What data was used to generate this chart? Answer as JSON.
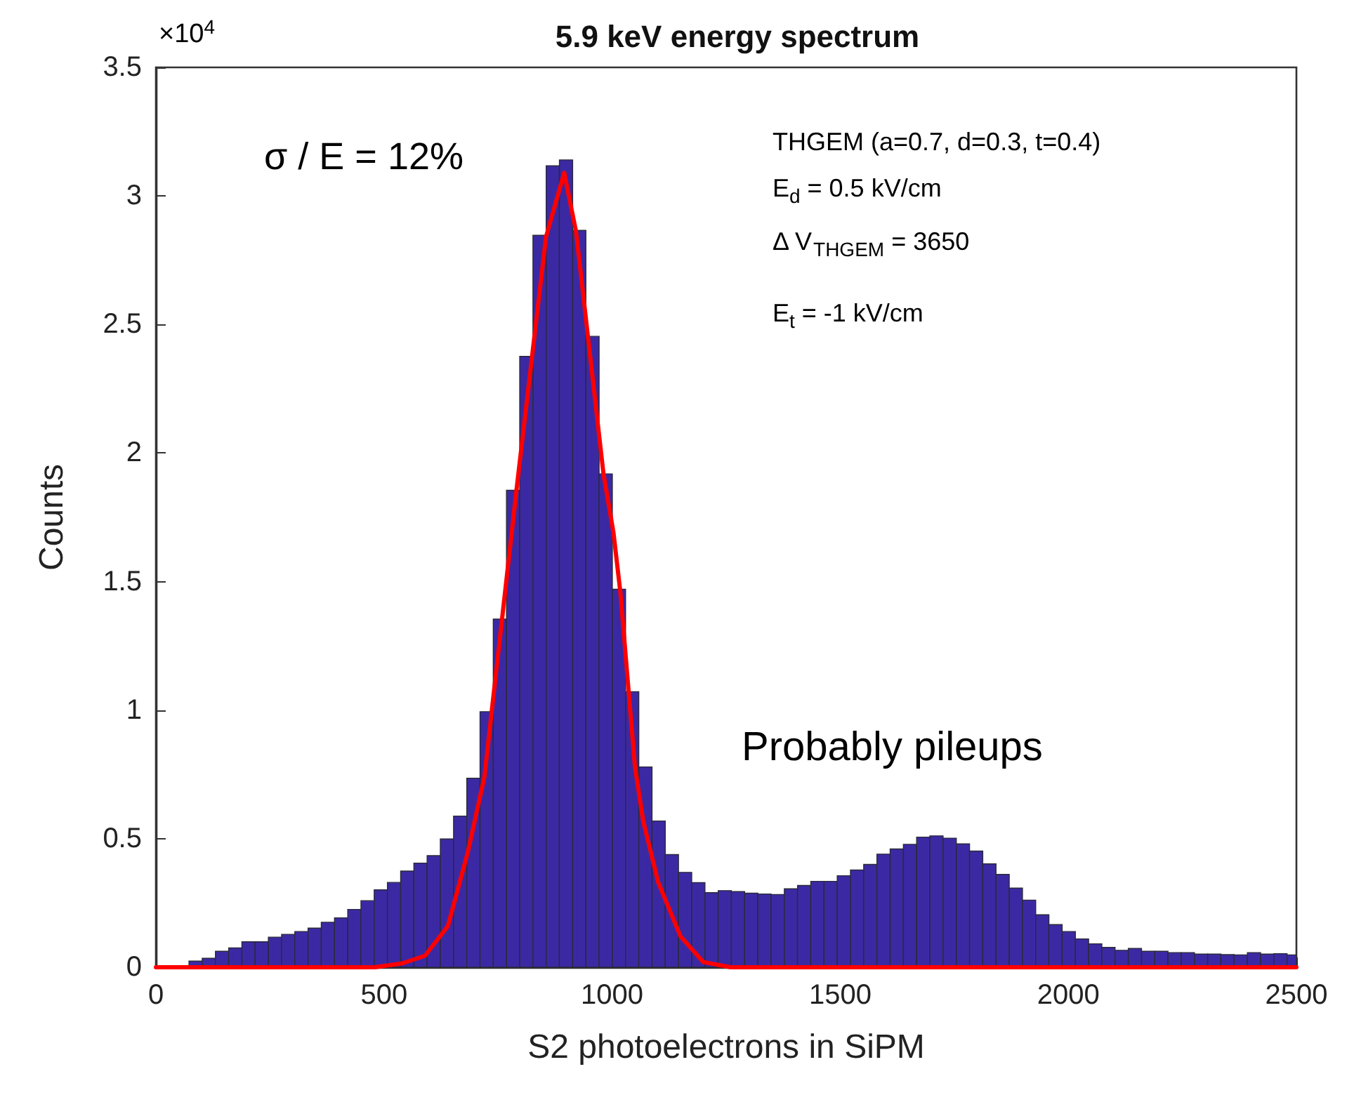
{
  "chart_data": {
    "type": "histogram",
    "title": "5.9 keV energy spectrum",
    "xlabel": "S2 photoelectrons in SiPM",
    "ylabel": "Counts",
    "bins": [
      72.5,
      101.5,
      130.5,
      159.5,
      188.5,
      217.5,
      246.5,
      275.5,
      304.5,
      333.5,
      362.5,
      391.5,
      420.5,
      449.5,
      478.5,
      507.5,
      536.5,
      565.5,
      594.5,
      623.5,
      652.5,
      681.5,
      710.5,
      739.5,
      768.5,
      797.5,
      826.5,
      855.5,
      884.5,
      913.5,
      942.5,
      971.5,
      1000.5,
      1029.5,
      1058.5,
      1087.5,
      1116.5,
      1145.5,
      1174.5,
      1203.5,
      1232.5,
      1261.5,
      1290.5,
      1319.5,
      1348.5,
      1377.5,
      1406.5,
      1435.5,
      1464.5,
      1493.5,
      1522.5,
      1551.5,
      1580.5,
      1609.5,
      1638.5,
      1667.5,
      1696.5,
      1725.5,
      1754.5,
      1783.5,
      1812.5,
      1841.5,
      1870.5,
      1899.5,
      1928.5,
      1957.5,
      1986.5,
      2015.5,
      2044.5,
      2073.5,
      2102.5,
      2131.5,
      2160.5,
      2189.5,
      2218.5,
      2247.5,
      2276.5,
      2305.5,
      2334.5,
      2363.5,
      2392.5,
      2421.5,
      2450.5,
      2479.5,
      2500
    ],
    "series": [
      {
        "color": "#3b29a4",
        "values": [
          0.024,
          0.035,
          0.062,
          0.075,
          0.099,
          0.099,
          0.117,
          0.128,
          0.139,
          0.152,
          0.175,
          0.192,
          0.225,
          0.259,
          0.301,
          0.33,
          0.374,
          0.405,
          0.434,
          0.499,
          0.588,
          0.735,
          0.994,
          1.354,
          1.855,
          2.376,
          2.847,
          3.117,
          3.14,
          2.866,
          2.454,
          1.919,
          1.47,
          1.072,
          0.779,
          0.569,
          0.438,
          0.369,
          0.329,
          0.29,
          0.298,
          0.294,
          0.288,
          0.285,
          0.283,
          0.305,
          0.318,
          0.334,
          0.334,
          0.356,
          0.378,
          0.4,
          0.44,
          0.46,
          0.478,
          0.506,
          0.511,
          0.502,
          0.48,
          0.452,
          0.402,
          0.361,
          0.308,
          0.261,
          0.204,
          0.166,
          0.139,
          0.11,
          0.091,
          0.077,
          0.066,
          0.073,
          0.062,
          0.062,
          0.057,
          0.057,
          0.051,
          0.051,
          0.049,
          0.048,
          0.057,
          0.051,
          0.053,
          0.048
        ]
      },
      {
        "type": "line",
        "color": "#ff0000",
        "x": [
          0,
          400,
          480,
          540,
          590,
          640,
          684,
          720,
          790,
          855,
          895,
          921,
          981,
          1003,
          1018,
          1050,
          1068,
          1101,
          1150,
          1200,
          1260,
          2500
        ],
        "values": [
          0,
          0,
          0,
          0.015,
          0.045,
          0.16,
          0.45,
          0.74,
          1.85,
          2.84,
          3.09,
          2.86,
          1.92,
          1.69,
          1.46,
          0.78,
          0.57,
          0.33,
          0.12,
          0.02,
          0,
          0
        ]
      }
    ],
    "xlim": [
      0,
      2500
    ],
    "xticks": [
      0,
      500,
      1000,
      1500,
      2000,
      2500
    ],
    "ylim": [
      0,
      3.5
    ],
    "yticks": [
      0,
      0.5,
      1,
      1.5,
      2,
      2.5,
      3,
      3.5
    ],
    "annotations": [
      "σ / E = 12%",
      "Probably pileups",
      "THGEM (a=0.7, d=0.3, t=0.4)",
      "E$_{d}$ = 0.5 kV/cm",
      "Δ V$_{THGEM}$ = 3650",
      "E$_{t}$ = -1 kV/cm",
      "×10$^{4}$"
    ],
    "grid": false,
    "marker": "none",
    "line_style": "solid"
  }
}
